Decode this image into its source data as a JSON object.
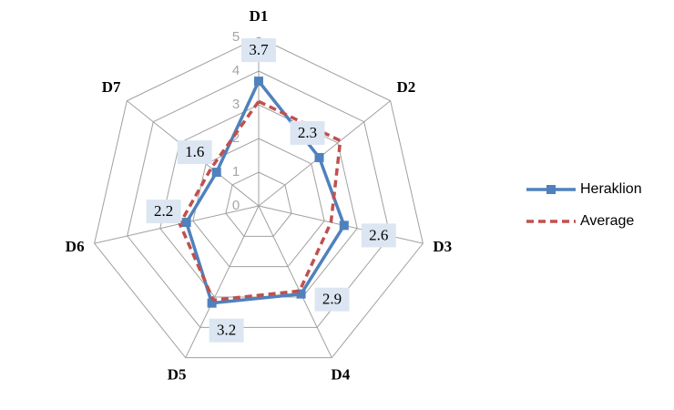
{
  "chart_data": {
    "type": "radar",
    "categories": [
      "D1",
      "D2",
      "D3",
      "D4",
      "D5",
      "D6",
      "D7"
    ],
    "series": [
      {
        "name": "Heraklion",
        "color": "#4f81bd",
        "values": [
          3.7,
          2.3,
          2.6,
          2.9,
          3.2,
          2.2,
          1.6
        ]
      },
      {
        "name": "Average",
        "color": "#c0504d",
        "values": [
          3.1,
          3.1,
          2.2,
          2.8,
          3.1,
          2.4,
          1.8
        ]
      }
    ],
    "ylim": [
      0,
      5
    ],
    "yticks": [
      0,
      1,
      2,
      3,
      4,
      5
    ],
    "grid": true,
    "legend": "right"
  }
}
